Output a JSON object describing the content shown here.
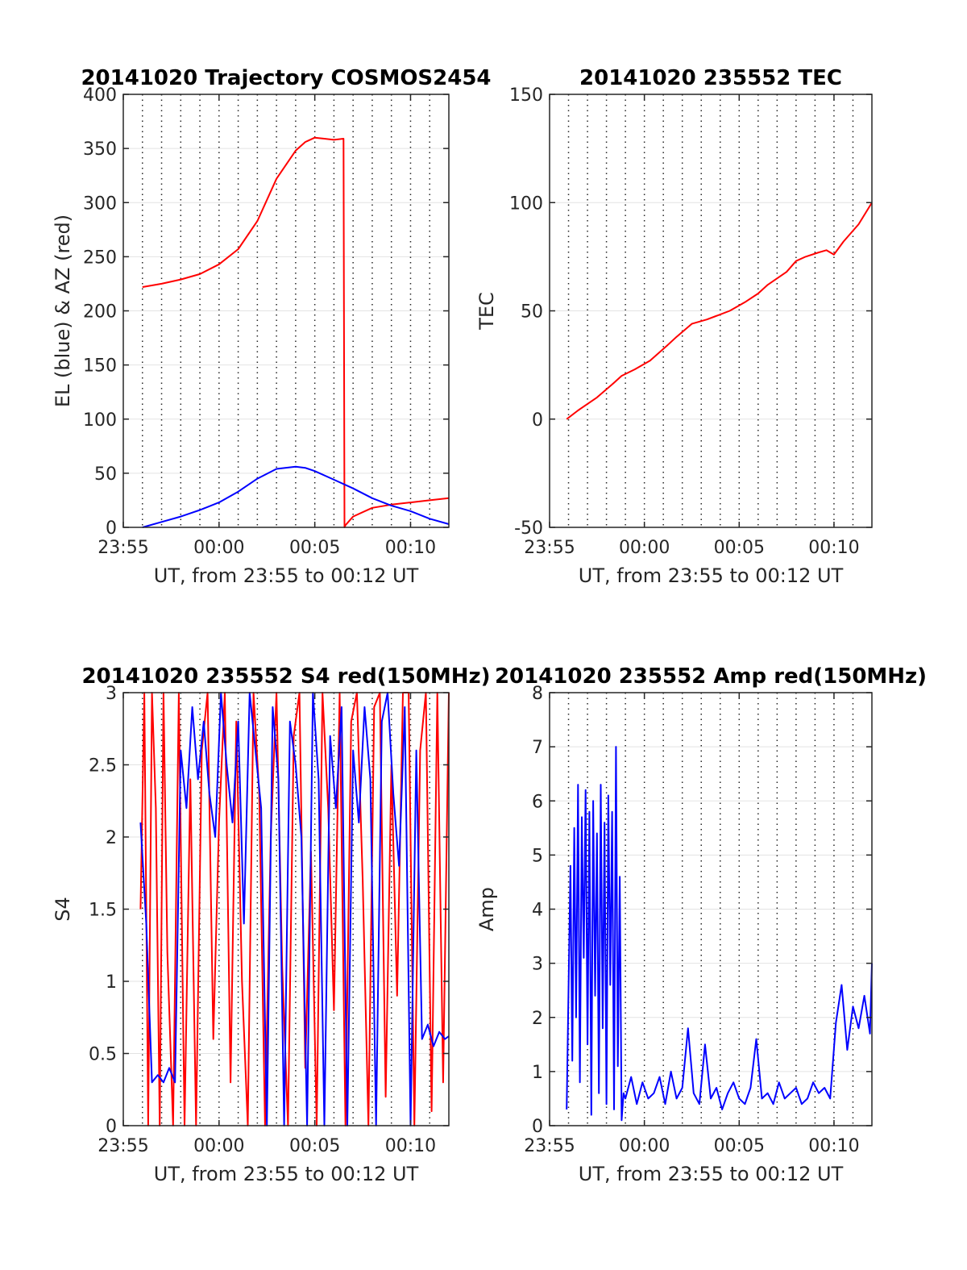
{
  "chart_data": [
    {
      "type": "line",
      "title": "20141020 Trajectory COSMOS2454",
      "xlabel": "UT, from 23:55 to 00:12 UT",
      "ylabel": "EL (blue) & AZ (red)",
      "xlim_minutes": [
        0,
        17
      ],
      "ylim": [
        0,
        400
      ],
      "yticks": [
        0,
        50,
        100,
        150,
        200,
        250,
        300,
        350,
        400
      ],
      "xtick_labels": [
        "23:55",
        "00:00",
        "00:05",
        "00:10"
      ],
      "grid": "x dotted, y light",
      "series": [
        {
          "color": "#ff0000",
          "x": [
            1,
            2,
            3,
            4,
            5,
            6,
            7,
            8,
            9,
            9.5,
            10,
            10.5,
            11,
            11.5,
            11.55,
            11.6,
            12,
            13,
            14,
            15,
            16,
            17
          ],
          "y": [
            222,
            225,
            229,
            234,
            243,
            257,
            283,
            322,
            348,
            356,
            360,
            359,
            358,
            359,
            0,
            2,
            10,
            18,
            21,
            23,
            25,
            27
          ]
        },
        {
          "color": "#0000ff",
          "x": [
            1,
            2,
            3,
            4,
            5,
            6,
            7,
            8,
            9,
            9.5,
            10,
            11,
            12,
            13,
            14,
            15,
            16,
            17
          ],
          "y": [
            0,
            5,
            10,
            16,
            23,
            33,
            45,
            54,
            56,
            55,
            52,
            44,
            36,
            27,
            20,
            15,
            8,
            3
          ]
        }
      ]
    },
    {
      "type": "line",
      "title": "20141020 235552 TEC",
      "xlabel": "UT, from 23:55 to 00:12 UT",
      "ylabel": "TEC",
      "xlim_minutes": [
        0,
        17
      ],
      "ylim": [
        -50,
        150
      ],
      "yticks": [
        -50,
        0,
        50,
        100,
        150
      ],
      "xtick_labels": [
        "23:55",
        "00:00",
        "00:05",
        "00:10"
      ],
      "grid": "x dotted, y light",
      "series": [
        {
          "color": "#ff0000",
          "x": [
            0.9,
            1.5,
            2.5,
            3.3,
            3.8,
            4.5,
            5.3,
            6.2,
            6.7,
            7.5,
            8.3,
            9.5,
            10.3,
            11.0,
            11.5,
            12.0,
            12.5,
            13.0,
            13.5,
            14.2,
            14.6,
            15.0,
            15.5,
            16.3,
            17.0
          ],
          "y": [
            0,
            4,
            10,
            16,
            20,
            23,
            27,
            34,
            38,
            44,
            46,
            50,
            54,
            58,
            62,
            65,
            68,
            73,
            75,
            77,
            78,
            76,
            82,
            90,
            100
          ]
        }
      ]
    },
    {
      "type": "line",
      "title": "20141020 235552 S4 red(150MHz)",
      "xlabel": "UT, from 23:55 to 00:12 UT",
      "ylabel": "S4",
      "xlim_minutes": [
        0,
        17
      ],
      "ylim": [
        0,
        3
      ],
      "yticks": [
        0,
        0.5,
        1,
        1.5,
        2,
        2.5,
        3
      ],
      "ytick_labels": [
        "0",
        "0.5",
        "1",
        "1.5",
        "2",
        "2.5",
        "3"
      ],
      "xtick_labels": [
        "23:55",
        "00:00",
        "00:05",
        "00:10"
      ],
      "grid": "x dotted, y light",
      "series": [
        {
          "color": "#ff0000",
          "x": [
            0.9,
            1.1,
            1.3,
            1.5,
            1.7,
            1.9,
            2.1,
            2.3,
            2.6,
            2.9,
            3.2,
            3.5,
            3.8,
            4.1,
            4.4,
            4.7,
            5.0,
            5.3,
            5.6,
            5.9,
            6.2,
            6.5,
            6.8,
            7.1,
            7.4,
            7.7,
            8.0,
            8.3,
            8.6,
            8.9,
            9.2,
            9.5,
            9.8,
            10.1,
            10.4,
            10.7,
            11.0,
            11.3,
            11.6,
            11.9,
            12.2,
            12.5,
            12.8,
            13.1,
            13.4,
            13.7,
            14.0,
            14.3,
            14.6,
            14.9,
            15.2,
            15.5,
            15.8,
            16.1,
            16.4,
            16.7,
            17.0
          ],
          "y": [
            1.5,
            3,
            0,
            3,
            2.2,
            0,
            3,
            1.2,
            0,
            3,
            0,
            2.4,
            0,
            2.6,
            3,
            0.6,
            2.1,
            3,
            0.3,
            2.8,
            1.0,
            0,
            3,
            2.3,
            0,
            2.0,
            3,
            1.1,
            0,
            2.7,
            3,
            0.4,
            1.9,
            0,
            3,
            2.2,
            0.8,
            3,
            0,
            2.8,
            3,
            1.7,
            0,
            2.9,
            3,
            0.2,
            2.5,
            0.9,
            3,
            3,
            0,
            2.6,
            3,
            0.1,
            3,
            0.3,
            3
          ]
        },
        {
          "color": "#0000ff",
          "x": [
            0.9,
            1.2,
            1.5,
            1.8,
            2.1,
            2.4,
            2.7,
            3.0,
            3.3,
            3.6,
            3.9,
            4.2,
            4.5,
            4.8,
            5.1,
            5.4,
            5.7,
            6.0,
            6.3,
            6.6,
            6.9,
            7.2,
            7.5,
            7.8,
            8.1,
            8.4,
            8.7,
            9.0,
            9.3,
            9.6,
            9.9,
            10.2,
            10.5,
            10.8,
            11.1,
            11.4,
            11.7,
            12.0,
            12.3,
            12.6,
            12.9,
            13.2,
            13.5,
            13.8,
            14.1,
            14.4,
            14.7,
            15.0,
            15.3,
            15.6,
            15.9,
            16.2,
            16.5,
            16.8,
            17.0
          ],
          "y": [
            2.1,
            1.4,
            0.3,
            0.35,
            0.3,
            0.4,
            0.3,
            2.6,
            2.2,
            2.9,
            2.4,
            2.8,
            2.3,
            2.0,
            3.0,
            2.5,
            2.1,
            2.8,
            1.4,
            3.0,
            2.6,
            2.2,
            0,
            2.9,
            2.4,
            0,
            2.8,
            2.5,
            2.0,
            0,
            3.0,
            2.4,
            0,
            2.7,
            2.2,
            2.9,
            0,
            2.6,
            2.1,
            2.9,
            2.4,
            0,
            2.8,
            3.0,
            2.3,
            1.8,
            2.9,
            0,
            2.6,
            0.6,
            0.7,
            0.55,
            0.65,
            0.6,
            0.62
          ]
        }
      ]
    },
    {
      "type": "line",
      "title": "20141020 235552 Amp red(150MHz)",
      "xlabel": "UT, from 23:55 to 00:12 UT",
      "ylabel": "Amp",
      "xlim_minutes": [
        0,
        17
      ],
      "ylim": [
        0,
        8
      ],
      "yticks": [
        0,
        1,
        2,
        3,
        4,
        5,
        6,
        7,
        8
      ],
      "xtick_labels": [
        "23:55",
        "00:00",
        "00:05",
        "00:10"
      ],
      "grid": "x dotted, y light",
      "series": [
        {
          "color": "#0000ff",
          "x": [
            0.9,
            1.0,
            1.1,
            1.2,
            1.3,
            1.4,
            1.5,
            1.6,
            1.7,
            1.8,
            1.9,
            2.0,
            2.1,
            2.2,
            2.3,
            2.4,
            2.5,
            2.6,
            2.7,
            2.8,
            2.9,
            3.0,
            3.1,
            3.2,
            3.3,
            3.4,
            3.5,
            3.6,
            3.7,
            3.8,
            3.9,
            4.0,
            4.3,
            4.6,
            4.9,
            5.2,
            5.5,
            5.8,
            6.1,
            6.4,
            6.7,
            7.0,
            7.3,
            7.6,
            7.9,
            8.2,
            8.5,
            8.8,
            9.1,
            9.4,
            9.7,
            10.0,
            10.3,
            10.6,
            10.9,
            11.2,
            11.5,
            11.8,
            12.1,
            12.4,
            12.7,
            13.0,
            13.3,
            13.6,
            13.9,
            14.2,
            14.5,
            14.8,
            15.1,
            15.4,
            15.7,
            16.0,
            16.3,
            16.6,
            16.9,
            17.0
          ],
          "y": [
            0.3,
            2.5,
            4.8,
            1.2,
            5.5,
            2.0,
            6.3,
            0.8,
            5.7,
            3.1,
            6.2,
            1.5,
            5.8,
            0.2,
            6.0,
            2.4,
            5.4,
            0.6,
            6.3,
            1.8,
            5.6,
            0.4,
            6.1,
            2.6,
            5.8,
            0.3,
            7.0,
            1.1,
            4.6,
            0.1,
            0.6,
            0.5,
            0.9,
            0.4,
            0.8,
            0.5,
            0.6,
            0.9,
            0.4,
            1.0,
            0.5,
            0.7,
            1.8,
            0.6,
            0.4,
            1.5,
            0.5,
            0.7,
            0.3,
            0.6,
            0.8,
            0.5,
            0.4,
            0.7,
            1.6,
            0.5,
            0.6,
            0.4,
            0.8,
            0.5,
            0.6,
            0.7,
            0.4,
            0.5,
            0.8,
            0.6,
            0.7,
            0.5,
            1.9,
            2.6,
            1.4,
            2.2,
            1.8,
            2.4,
            1.7,
            3.0
          ]
        }
      ]
    }
  ]
}
